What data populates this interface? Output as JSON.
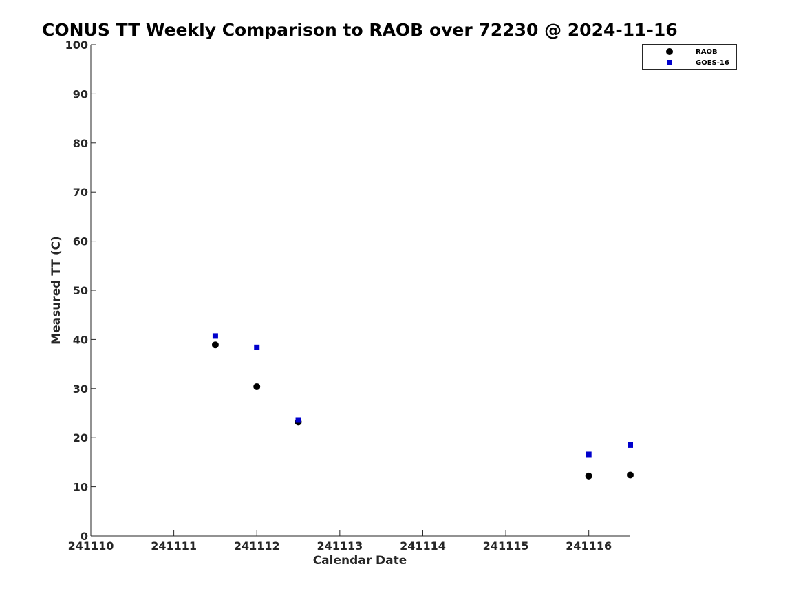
{
  "chart_data": {
    "type": "scatter",
    "title": "CONUS TT Weekly Comparison to RAOB over 72230 @ 2024-11-16",
    "xlabel": "Calendar Date",
    "ylabel": "Measured TT (C)",
    "x_axis": {
      "ticks": [
        "241110",
        "241111",
        "241112",
        "241113",
        "241114",
        "241115",
        "241116"
      ],
      "range": [
        "241110",
        "241116 12Z"
      ]
    },
    "ylim": [
      0,
      100
    ],
    "y_ticks": [
      0,
      10,
      20,
      30,
      40,
      50,
      60,
      70,
      80,
      90,
      100
    ],
    "grid": false,
    "legend": {
      "placement": "top-right"
    },
    "series": [
      {
        "name": "RAOB",
        "marker": "circle",
        "color": "#000000",
        "points": [
          {
            "x": "241111 12Z",
            "y": 38.9
          },
          {
            "x": "241112 00Z",
            "y": 30.4
          },
          {
            "x": "241112 12Z",
            "y": 23.2
          },
          {
            "x": "241116 00Z",
            "y": 12.2
          },
          {
            "x": "241116 12Z",
            "y": 12.4
          }
        ]
      },
      {
        "name": "GOES-16",
        "marker": "square",
        "color": "#0000cc",
        "points": [
          {
            "x": "241111 12Z",
            "y": 40.7
          },
          {
            "x": "241112 00Z",
            "y": 38.4
          },
          {
            "x": "241112 12Z",
            "y": 23.6
          },
          {
            "x": "241116 00Z",
            "y": 16.6
          },
          {
            "x": "241116 12Z",
            "y": 18.5
          }
        ]
      }
    ]
  }
}
